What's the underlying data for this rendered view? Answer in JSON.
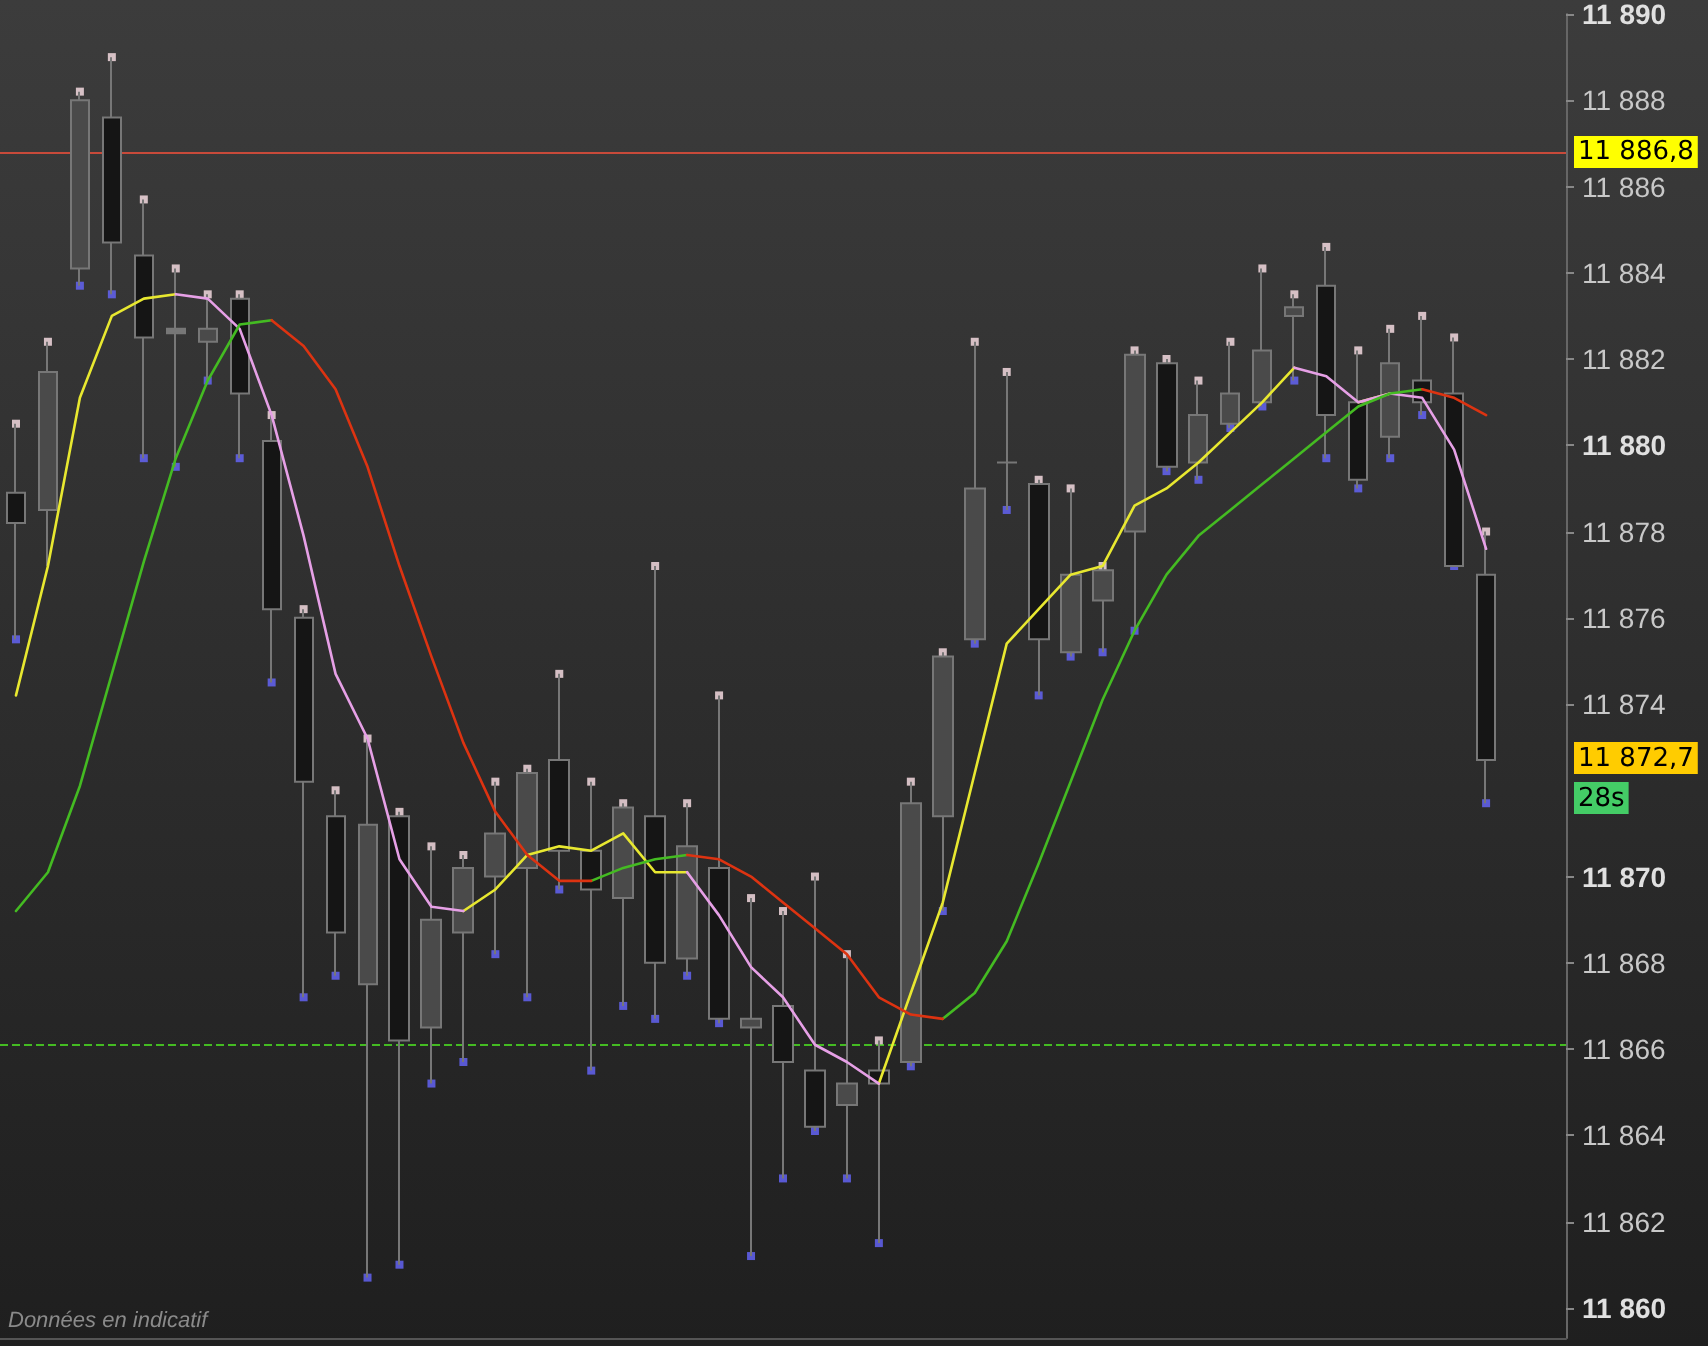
{
  "chart_data": {
    "type": "candlestick",
    "categories": [
      null,
      null,
      null,
      null,
      null,
      null,
      null,
      null,
      null,
      null,
      null,
      null,
      null,
      null,
      null,
      null,
      null,
      null,
      null,
      null,
      null,
      null,
      null,
      null,
      null,
      null,
      null,
      null,
      null,
      null,
      null,
      null,
      null,
      null,
      null,
      null,
      null,
      null,
      null,
      null,
      null,
      null,
      null,
      null,
      null,
      null,
      null
    ],
    "ohlc": [
      [
        11878.9,
        11880.5,
        11875.5,
        11878.2
      ],
      [
        11878.5,
        11882.4,
        11877.2,
        11881.7
      ],
      [
        11884.1,
        11888.2,
        11883.7,
        11888.0
      ],
      [
        11887.6,
        11889.0,
        11883.5,
        11884.7
      ],
      [
        11884.4,
        11885.7,
        11879.7,
        11882.5
      ],
      [
        11882.7,
        11884.1,
        11879.5,
        11882.6
      ],
      [
        11882.4,
        11883.5,
        11881.5,
        11882.7
      ],
      [
        11883.4,
        11883.5,
        11879.7,
        11881.2
      ],
      [
        11880.1,
        11880.7,
        11874.5,
        11876.2
      ],
      [
        11876.0,
        11876.2,
        11867.2,
        11872.2
      ],
      [
        11871.4,
        11872.0,
        11867.7,
        11868.7
      ],
      [
        11867.5,
        11873.2,
        11860.7,
        11871.2
      ],
      [
        11871.4,
        11871.5,
        11861.0,
        11866.2
      ],
      [
        11866.5,
        11870.7,
        11865.2,
        11869.0
      ],
      [
        11868.7,
        11870.5,
        11865.7,
        11870.2
      ],
      [
        11870.0,
        11872.2,
        11868.2,
        11871.0
      ],
      [
        11870.2,
        11872.5,
        11867.2,
        11872.4
      ],
      [
        11872.7,
        11874.7,
        11869.7,
        11870.6
      ],
      [
        11870.6,
        11872.2,
        11865.5,
        11869.7
      ],
      [
        11869.5,
        11871.7,
        11867.0,
        11871.6
      ],
      [
        11871.4,
        11877.2,
        11866.7,
        11868.0
      ],
      [
        11868.1,
        11871.7,
        11867.7,
        11870.7
      ],
      [
        11870.2,
        11874.2,
        11866.6,
        11866.7
      ],
      [
        11866.5,
        11869.5,
        11861.2,
        11866.7
      ],
      [
        11867.0,
        11869.2,
        11863.0,
        11865.7
      ],
      [
        11865.5,
        11870.0,
        11864.1,
        11864.2
      ],
      [
        11864.7,
        11868.2,
        11863.0,
        11865.2
      ],
      [
        11865.5,
        11866.2,
        11861.5,
        11865.2
      ],
      [
        11865.7,
        11872.2,
        11865.6,
        11871.7
      ],
      [
        11871.4,
        11875.2,
        11869.2,
        11875.1
      ],
      [
        11875.5,
        11882.4,
        11875.4,
        11879.0
      ],
      [
        11879.6,
        11881.7,
        11878.5,
        11879.6
      ],
      [
        11879.1,
        11879.2,
        11874.2,
        11875.5
      ],
      [
        11875.2,
        11879.0,
        11875.1,
        11877.0
      ],
      [
        11876.4,
        11877.2,
        11875.2,
        11877.1
      ],
      [
        11878.0,
        11882.2,
        11875.7,
        11882.1
      ],
      [
        11881.9,
        11882.0,
        11879.4,
        11879.5
      ],
      [
        11879.6,
        11881.5,
        11879.2,
        11880.7
      ],
      [
        11880.5,
        11882.4,
        11880.4,
        11881.2
      ],
      [
        11881.0,
        11884.1,
        11880.9,
        11882.2
      ],
      [
        11883.0,
        11883.5,
        11881.5,
        11883.2
      ],
      [
        11883.7,
        11884.6,
        11879.7,
        11880.7
      ],
      [
        11881.0,
        11882.2,
        11879.0,
        11879.2
      ],
      [
        11880.2,
        11882.7,
        11879.7,
        11881.9
      ],
      [
        11881.5,
        11883.0,
        11880.7,
        11881.0
      ],
      [
        11881.2,
        11882.5,
        11877.2,
        11877.2
      ],
      [
        11877.0,
        11878.0,
        11871.7,
        11872.7
      ]
    ],
    "colors": [
      "#151515",
      "#4a4a4a",
      "#4a4a4a",
      "#151515",
      "#151515",
      "#777777",
      "#4a4a4a",
      "#151515",
      "#151515",
      "#151515",
      "#151515",
      "#4a4a4a",
      "#151515",
      "#4a4a4a",
      "#4a4a4a",
      "#4a4a4a",
      "#4a4a4a",
      "#151515",
      "#151515",
      "#4a4a4a",
      "#151515",
      "#4a4a4a",
      "#151515",
      "#4a4a4a",
      "#151515",
      "#151515",
      "#4a4a4a",
      "#151515",
      "#4a4a4a",
      "#4a4a4a",
      "#4a4a4a",
      "#777777",
      "#151515",
      "#4a4a4a",
      "#4a4a4a",
      "#4a4a4a",
      "#151515",
      "#4a4a4a",
      "#4a4a4a",
      "#4a4a4a",
      "#4a4a4a",
      "#151515",
      "#151515",
      "#4a4a4a",
      "#151515",
      "#151515",
      "#151515"
    ],
    "series": [
      {
        "type": "line",
        "color": "#e8e830",
        "marker": "none",
        "values": [
          11874.2,
          11877.2,
          11881.1,
          11883.0,
          11883.4,
          11883.5,
          null,
          null,
          null,
          null,
          null,
          null,
          null,
          null,
          11869.2,
          11869.7,
          11870.5,
          11870.7,
          11870.6,
          11871.0,
          11870.1,
          11870.1,
          null,
          null,
          null,
          null,
          null,
          11865.2,
          11867.3,
          11869.4,
          11872.4,
          11875.4,
          11876.2,
          11877.0,
          11877.2,
          11878.6,
          11879.0,
          11879.6,
          11880.3,
          11881.0,
          11881.8,
          null,
          11881.0,
          11881.2,
          null,
          null,
          null
        ]
      },
      {
        "type": "line",
        "color": "#e6a0e6",
        "marker": "none",
        "values": [
          null,
          null,
          null,
          null,
          null,
          11883.5,
          11883.4,
          11882.7,
          11880.7,
          11877.9,
          11874.7,
          11873.2,
          11870.4,
          11869.3,
          11869.2,
          null,
          null,
          null,
          null,
          null,
          null,
          11870.1,
          11869.1,
          11867.9,
          11867.2,
          11866.1,
          11865.7,
          11865.2,
          null,
          null,
          null,
          null,
          null,
          null,
          null,
          null,
          null,
          null,
          null,
          null,
          11881.8,
          11881.6,
          11881.0,
          11881.2,
          11881.1,
          11879.9,
          11877.6
        ]
      },
      {
        "type": "line",
        "color": "#44bb22",
        "marker": "none",
        "values": [
          11869.2,
          11870.1,
          11872.1,
          11874.7,
          11877.3,
          11879.7,
          11881.5,
          11882.8,
          11882.9,
          null,
          null,
          null,
          null,
          null,
          null,
          null,
          null,
          null,
          11869.9,
          11870.2,
          11870.4,
          11870.5,
          null,
          null,
          null,
          null,
          null,
          null,
          null,
          11866.7,
          11867.3,
          11868.5,
          11870.3,
          11872.2,
          11874.1,
          11875.7,
          11877.0,
          11877.9,
          11878.5,
          11879.1,
          11879.7,
          11880.3,
          11880.9,
          11881.2,
          11881.3,
          null,
          null
        ]
      },
      {
        "type": "line",
        "color": "#dd3311",
        "marker": "none",
        "values": [
          null,
          null,
          null,
          null,
          null,
          null,
          null,
          null,
          11882.9,
          11882.3,
          11881.3,
          11879.5,
          11877.2,
          11875.1,
          11873.1,
          11871.5,
          11870.5,
          11869.9,
          11869.9,
          null,
          null,
          11870.5,
          11870.4,
          11870.0,
          11869.4,
          11868.8,
          11868.2,
          11867.2,
          11866.8,
          11866.7,
          null,
          null,
          null,
          null,
          null,
          null,
          null,
          null,
          null,
          null,
          null,
          null,
          null,
          null,
          11881.3,
          11881.1,
          11880.7
        ]
      },
      {
        "type": "scatter",
        "color": "#ffe4ea",
        "marker": "square",
        "values": [
          11880.5,
          11882.4,
          11888.2,
          11889.0,
          11885.7,
          11884.1,
          11883.5,
          11883.5,
          11880.7,
          11876.2,
          11872.0,
          11873.2,
          11871.5,
          11870.7,
          11870.5,
          11872.2,
          11872.5,
          11874.7,
          11872.2,
          11871.7,
          11877.2,
          11871.7,
          11874.2,
          11869.5,
          11869.2,
          11870.0,
          11868.2,
          11866.2,
          11872.2,
          11875.2,
          11882.4,
          11881.7,
          11879.2,
          11879.0,
          11877.2,
          11882.2,
          11882.0,
          11881.5,
          11882.4,
          11884.1,
          11883.5,
          11884.6,
          11882.2,
          11882.7,
          11883.0,
          11882.5,
          11878.0
        ]
      },
      {
        "type": "scatter",
        "color": "#6666ff",
        "marker": "square",
        "values": [
          11875.5,
          null,
          11883.7,
          11883.5,
          11879.7,
          11879.5,
          11881.5,
          11879.7,
          11874.5,
          11867.2,
          11867.7,
          11860.7,
          11861.0,
          11865.2,
          11865.7,
          11868.2,
          11867.2,
          11869.7,
          11865.5,
          11867.0,
          11866.7,
          11867.7,
          11866.6,
          11861.2,
          11863.0,
          11864.1,
          11863.0,
          11861.5,
          11865.6,
          11869.2,
          11875.4,
          11878.5,
          11874.2,
          11875.1,
          11875.2,
          11875.7,
          11879.4,
          11879.2,
          11880.4,
          11880.9,
          11881.5,
          11879.7,
          11879.0,
          11879.7,
          11880.7,
          11877.2,
          11871.7
        ]
      }
    ],
    "ylim": [
      11859.3,
      11890
    ],
    "yticks": [
      {
        "value": 11860,
        "label": "11 860"
      },
      {
        "value": 11862,
        "label": "11 862"
      },
      {
        "value": 11864,
        "label": "11 864"
      },
      {
        "value": 11866,
        "label": "11 866"
      },
      {
        "value": 11868,
        "label": "11 868"
      },
      {
        "value": 11870,
        "label": "11 870"
      },
      {
        "value": 11874,
        "label": "11 874"
      },
      {
        "value": 11876,
        "label": "11 876"
      },
      {
        "value": 11878,
        "label": "11 878"
      },
      {
        "value": 11880,
        "label": "11 880"
      },
      {
        "value": 11882,
        "label": "11 882"
      },
      {
        "value": 11884,
        "label": "11 884"
      },
      {
        "value": 11886,
        "label": "11 886"
      },
      {
        "value": 11888,
        "label": "11 888"
      },
      {
        "value": 11890,
        "label": "11 890"
      }
    ],
    "tick_labels": "y",
    "ref_lines": [
      {
        "axis": "y",
        "value": 11886.8,
        "label": "11 886,8",
        "color": "#c84a3a"
      },
      {
        "axis": "y",
        "value": 11866.1,
        "color": "#44bb22",
        "line_style": "dashed"
      }
    ],
    "annotations": [
      "Données en indicatif",
      "11 872,7",
      "28s"
    ]
  }
}
